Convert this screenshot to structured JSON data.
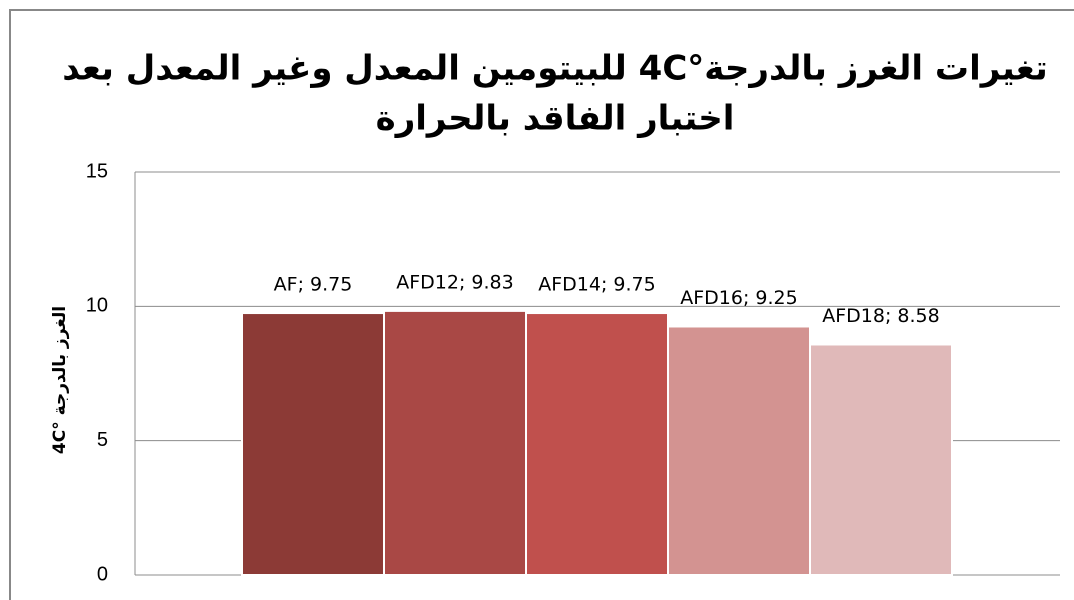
{
  "chart_data": {
    "type": "bar",
    "title": [
      "تغيرات الغرز بالدرجة°4C للبيتومين المعدل وغير المعدل بعد",
      "اختبار الفاقد بالحرارة"
    ],
    "y_label": "الغرز بالدرجة °4C",
    "values": [
      9.75,
      9.83,
      9.75,
      9.25,
      8.58
    ],
    "value_labels": [
      "AF; 9.75",
      "AFD12; 9.83",
      "AFD14; 9.75",
      "AFD16; 9.25",
      "AFD18; 8.58"
    ],
    "colors": [
      "#8c3a36",
      "#a94845",
      "#c0504d",
      "#d39391",
      "#e0b9b9"
    ],
    "ylim": [
      0,
      15
    ],
    "yticks": [
      0,
      5,
      10,
      15
    ],
    "grid": true
  }
}
